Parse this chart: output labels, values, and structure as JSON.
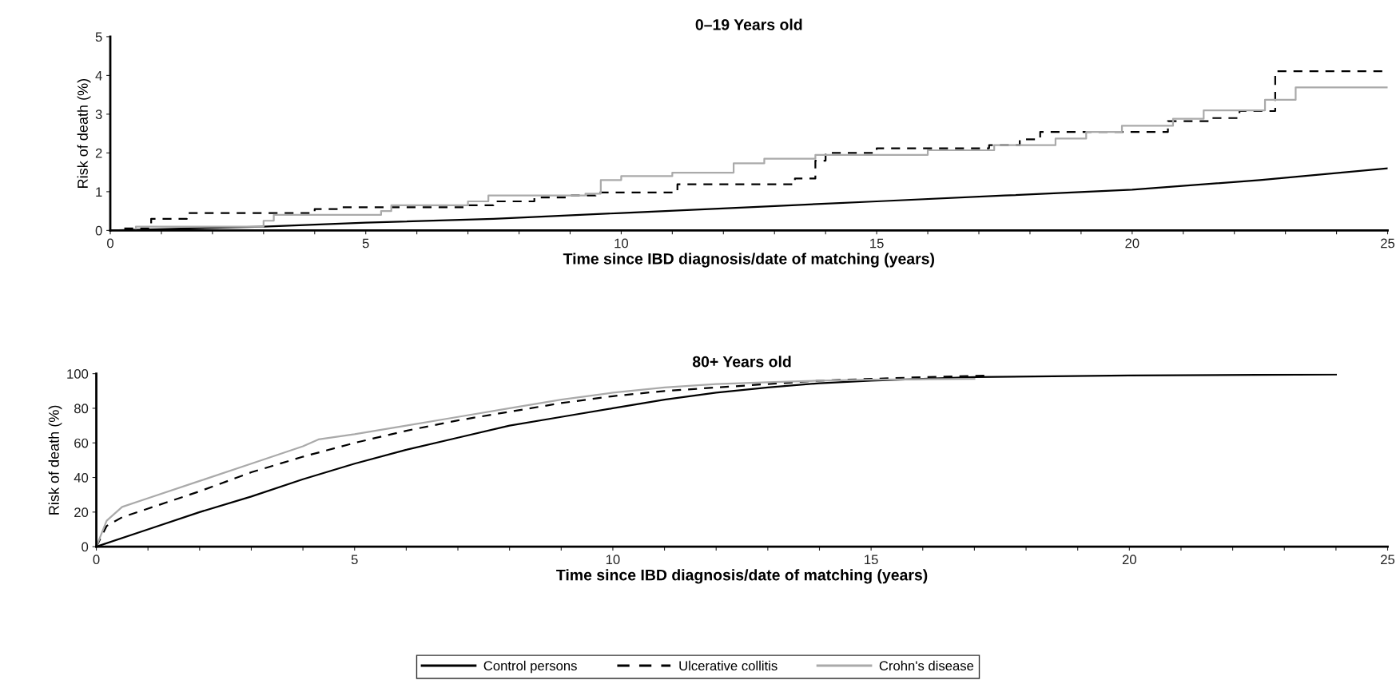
{
  "chart_data": [
    {
      "type": "step",
      "title": "0–19 Years old",
      "xlabel": "Time since IBD diagnosis/date of matching (years)",
      "ylabel": "Risk of death (%)",
      "xlim": [
        0,
        25
      ],
      "ylim": [
        0,
        5
      ],
      "xticks": [
        0,
        {
          "value": 1,
          "label": null
        },
        {
          "value": 2,
          "label": null
        },
        {
          "value": 3,
          "label": null
        },
        {
          "value": 4,
          "label": null
        },
        5,
        {
          "value": 6,
          "label": null
        },
        {
          "value": 7,
          "label": null
        },
        {
          "value": 8,
          "label": null
        },
        {
          "value": 9,
          "label": null
        },
        10,
        {
          "value": 11,
          "label": null
        },
        {
          "value": 12,
          "label": null
        },
        {
          "value": 13,
          "label": null
        },
        {
          "value": 14,
          "label": null
        },
        15,
        {
          "value": 16,
          "label": null
        },
        {
          "value": 17,
          "label": null
        },
        {
          "value": 18,
          "label": null
        },
        {
          "value": 19,
          "label": null
        },
        20,
        {
          "value": 21,
          "label": null
        },
        {
          "value": 22,
          "label": null
        },
        {
          "value": 23,
          "label": null
        },
        {
          "value": 24,
          "label": null
        },
        25
      ],
      "yticks": [
        0,
        1,
        2,
        3,
        4,
        5
      ],
      "grid": false,
      "legend": false,
      "series": [
        {
          "color": "#000000",
          "type": "line",
          "line_style": "solid",
          "x": [
            0,
            3,
            5,
            7.5,
            10,
            12.5,
            15,
            17.5,
            20,
            22.5,
            25
          ],
          "values": [
            0,
            0.1,
            0.2,
            0.3,
            0.45,
            0.6,
            0.75,
            0.9,
            1.05,
            1.3,
            1.6
          ]
        },
        {
          "color": "#000000",
          "line_style": "dashed",
          "x": [
            0,
            0.2,
            0.8,
            1.5,
            4,
            4.5,
            7,
            7.5,
            8.3,
            9,
            9.5,
            11.1,
            13.4,
            13.8,
            14,
            15,
            17.2,
            17.8,
            18.2,
            20.7,
            21.5,
            22.1,
            22.8,
            25
          ],
          "values": [
            0,
            0.05,
            0.3,
            0.45,
            0.55,
            0.6,
            0.65,
            0.75,
            0.85,
            0.9,
            0.98,
            1.19,
            1.34,
            1.8,
            2.0,
            2.12,
            2.2,
            2.35,
            2.54,
            2.82,
            2.9,
            3.08,
            4.11,
            4.11
          ]
        },
        {
          "color": "#aaaaaa",
          "line_style": "solid",
          "x": [
            0,
            0.5,
            3,
            3.2,
            5.3,
            5.5,
            7,
            7.4,
            9.3,
            9.6,
            10,
            11,
            12.2,
            12.8,
            13.8,
            16,
            17.3,
            18.5,
            19.1,
            19.8,
            20.8,
            21.4,
            22.6,
            23.2,
            25
          ],
          "values": [
            0,
            0.1,
            0.25,
            0.4,
            0.5,
            0.65,
            0.75,
            0.9,
            0.95,
            1.3,
            1.4,
            1.49,
            1.73,
            1.85,
            1.95,
            2.07,
            2.2,
            2.37,
            2.54,
            2.7,
            2.88,
            3.1,
            3.37,
            3.69,
            3.69
          ]
        }
      ]
    },
    {
      "type": "line",
      "title": "80+ Years old",
      "xlabel": "Time since IBD diagnosis/date of matching (years)",
      "ylabel": "Risk of death (%)",
      "xlim": [
        0,
        25
      ],
      "ylim": [
        0,
        100
      ],
      "xticks": [
        0,
        {
          "value": 1,
          "label": null
        },
        {
          "value": 2,
          "label": null
        },
        {
          "value": 3,
          "label": null
        },
        {
          "value": 4,
          "label": null
        },
        5,
        {
          "value": 6,
          "label": null
        },
        {
          "value": 7,
          "label": null
        },
        {
          "value": 8,
          "label": null
        },
        {
          "value": 9,
          "label": null
        },
        10,
        {
          "value": 11,
          "label": null
        },
        {
          "value": 12,
          "label": null
        },
        {
          "value": 13,
          "label": null
        },
        {
          "value": 14,
          "label": null
        },
        15,
        {
          "value": 16,
          "label": null
        },
        {
          "value": 17,
          "label": null
        },
        {
          "value": 18,
          "label": null
        },
        {
          "value": 19,
          "label": null
        },
        20,
        {
          "value": 21,
          "label": null
        },
        {
          "value": 22,
          "label": null
        },
        {
          "value": 23,
          "label": null
        },
        {
          "value": 24,
          "label": null
        },
        25
      ],
      "yticks": [
        0,
        20,
        40,
        60,
        80,
        100
      ],
      "grid": false,
      "legend": "bottom",
      "series": [
        {
          "name": "Control persons",
          "color": "#000000",
          "line_style": "solid",
          "x": [
            0,
            1,
            2,
            3,
            4,
            5,
            6,
            7,
            8,
            9,
            10,
            11,
            12,
            13,
            14,
            15,
            17,
            20,
            24
          ],
          "values": [
            0,
            10,
            20,
            29,
            39,
            48,
            56,
            63,
            70,
            75,
            80,
            85,
            89,
            92,
            94.5,
            96,
            98,
            99,
            99.5
          ]
        },
        {
          "name": "Ulcerative collitis",
          "color": "#000000",
          "line_style": "dashed",
          "x": [
            0,
            0.2,
            0.5,
            1,
            2,
            3,
            4,
            5,
            6,
            7,
            8,
            9,
            10,
            11,
            12,
            13,
            14,
            15,
            16,
            17.3
          ],
          "values": [
            0,
            12,
            17,
            22,
            32,
            43,
            52,
            60,
            67,
            73,
            78,
            83,
            87,
            90,
            92,
            94,
            96,
            97,
            98,
            99
          ]
        },
        {
          "name": "Crohn's disease",
          "color": "#aaaaaa",
          "line_style": "solid",
          "x": [
            0,
            0.2,
            0.5,
            1,
            2,
            3,
            4,
            4.3,
            5,
            6,
            7,
            8,
            9,
            10,
            11,
            12,
            13,
            14,
            15,
            17
          ],
          "values": [
            0,
            15,
            23,
            28,
            38,
            48,
            58,
            62,
            65,
            70,
            75,
            80,
            85,
            89,
            92,
            94,
            95,
            96,
            96.5,
            97
          ]
        }
      ]
    }
  ]
}
